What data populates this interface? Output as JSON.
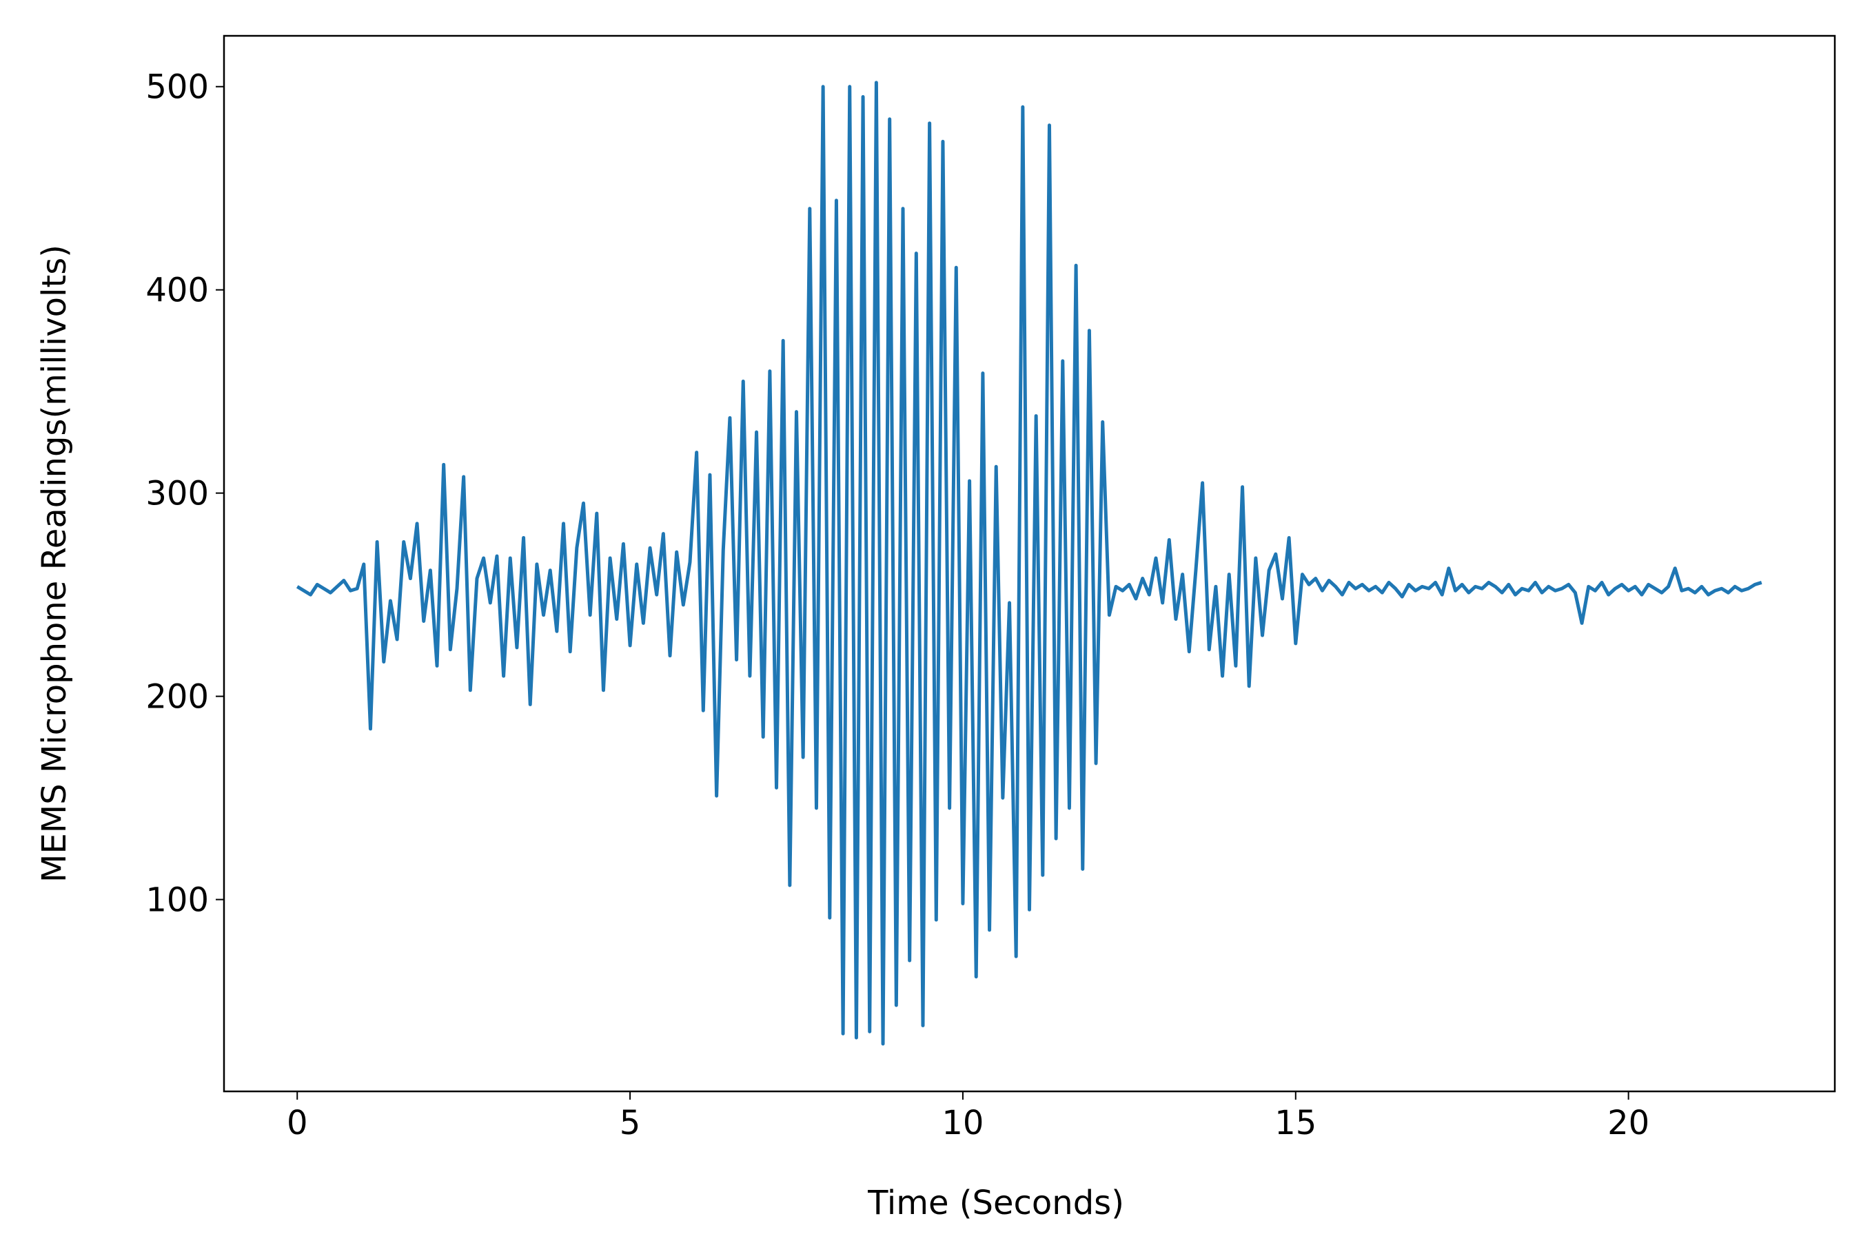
{
  "chart_data": {
    "type": "line",
    "xlabel": "Time (Seconds)",
    "ylabel": "MEMS Microphone Readings(millivolts)",
    "color": "#1f77b4",
    "x": [
      0.0,
      0.1,
      0.2,
      0.3,
      0.4,
      0.5,
      0.6,
      0.7,
      0.8,
      0.9,
      1.0,
      1.1,
      1.2,
      1.3,
      1.4,
      1.5,
      1.6,
      1.7,
      1.8,
      1.9,
      2.0,
      2.1,
      2.2,
      2.3,
      2.4,
      2.5,
      2.6,
      2.7,
      2.8,
      2.9,
      3.0,
      3.1,
      3.2,
      3.3,
      3.4,
      3.5,
      3.6,
      3.7,
      3.8,
      3.9,
      4.0,
      4.1,
      4.2,
      4.3,
      4.4,
      4.5,
      4.6,
      4.7,
      4.8,
      4.9,
      5.0,
      5.1,
      5.2,
      5.3,
      5.4,
      5.5,
      5.6,
      5.7,
      5.8,
      5.9,
      6.0,
      6.1,
      6.2,
      6.3,
      6.4,
      6.5,
      6.6,
      6.7,
      6.8,
      6.9,
      7.0,
      7.1,
      7.2,
      7.3,
      7.4,
      7.5,
      7.6,
      7.7,
      7.8,
      7.9,
      8.0,
      8.1,
      8.2,
      8.3,
      8.4,
      8.5,
      8.6,
      8.7,
      8.8,
      8.9,
      9.0,
      9.1,
      9.2,
      9.3,
      9.4,
      9.5,
      9.6,
      9.7,
      9.8,
      9.9,
      10.0,
      10.1,
      10.2,
      10.3,
      10.4,
      10.5,
      10.6,
      10.7,
      10.8,
      10.9,
      11.0,
      11.1,
      11.2,
      11.3,
      11.4,
      11.5,
      11.6,
      11.7,
      11.8,
      11.9,
      12.0,
      12.1,
      12.2,
      12.3,
      12.4,
      12.5,
      12.6,
      12.7,
      12.8,
      12.9,
      13.0,
      13.1,
      13.2,
      13.3,
      13.4,
      13.5,
      13.6,
      13.7,
      13.8,
      13.9,
      14.0,
      14.1,
      14.2,
      14.3,
      14.4,
      14.5,
      14.6,
      14.7,
      14.8,
      14.9,
      15.0,
      15.1,
      15.2,
      15.3,
      15.4,
      15.5,
      15.6,
      15.7,
      15.8,
      15.9,
      16.0,
      16.1,
      16.2,
      16.3,
      16.4,
      16.5,
      16.6,
      16.7,
      16.8,
      16.9,
      17.0,
      17.1,
      17.2,
      17.3,
      17.4,
      17.5,
      17.6,
      17.7,
      17.8,
      17.9,
      18.0,
      18.1,
      18.2,
      18.3,
      18.4,
      18.5,
      18.6,
      18.7,
      18.8,
      18.9,
      19.0,
      19.1,
      19.2,
      19.3,
      19.4,
      19.5,
      19.6,
      19.7,
      19.8,
      19.9,
      20.0,
      20.1,
      20.2,
      20.3,
      20.4,
      20.5,
      20.6,
      20.7,
      20.8,
      20.9,
      21.0,
      21.1,
      21.2,
      21.3,
      21.4,
      21.5,
      21.6,
      21.7,
      21.8,
      21.9,
      22.0
    ],
    "values": [
      254,
      252,
      250,
      255,
      253,
      251,
      254,
      257,
      252,
      253,
      265,
      184,
      276,
      217,
      247,
      228,
      276,
      258,
      285,
      237,
      262,
      215,
      314,
      223,
      253,
      308,
      203,
      258,
      268,
      246,
      269,
      210,
      268,
      224,
      278,
      196,
      265,
      240,
      262,
      232,
      285,
      222,
      273,
      295,
      240,
      290,
      203,
      268,
      238,
      275,
      225,
      265,
      236,
      273,
      250,
      280,
      220,
      271,
      245,
      266,
      320,
      193,
      309,
      151,
      272,
      337,
      218,
      355,
      210,
      330,
      180,
      360,
      155,
      375,
      107,
      340,
      170,
      440,
      145,
      500,
      91,
      444,
      34,
      500,
      32,
      495,
      35,
      502,
      29,
      484,
      48,
      440,
      70,
      418,
      38,
      482,
      90,
      473,
      145,
      411,
      98,
      306,
      62,
      359,
      85,
      313,
      150,
      246,
      72,
      490,
      95,
      338,
      112,
      481,
      130,
      365,
      145,
      412,
      115,
      380,
      167,
      335,
      240,
      254,
      252,
      255,
      248,
      258,
      250,
      268,
      246,
      277,
      238,
      260,
      222,
      262,
      305,
      223,
      254,
      210,
      260,
      215,
      303,
      205,
      268,
      230,
      262,
      270,
      248,
      278,
      226,
      260,
      255,
      258,
      252,
      257,
      254,
      250,
      256,
      253,
      255,
      252,
      254,
      251,
      256,
      253,
      249,
      255,
      252,
      254,
      253,
      256,
      250,
      263,
      252,
      255,
      251,
      254,
      253,
      256,
      254,
      251,
      255,
      250,
      253,
      252,
      256,
      251,
      254,
      252,
      253,
      255,
      251,
      236,
      254,
      252,
      256,
      250,
      253,
      255,
      252,
      254,
      250,
      255,
      253,
      251,
      254,
      263,
      252,
      253,
      251,
      254,
      250,
      252,
      253,
      251,
      254,
      252,
      253,
      255,
      256
    ],
    "xlim": [
      -1.1,
      23.1
    ],
    "xticks": [
      0,
      5,
      10,
      15,
      20
    ],
    "ylim": [
      5.6,
      525
    ],
    "yticks": [
      100,
      200,
      300,
      400,
      500
    ]
  }
}
